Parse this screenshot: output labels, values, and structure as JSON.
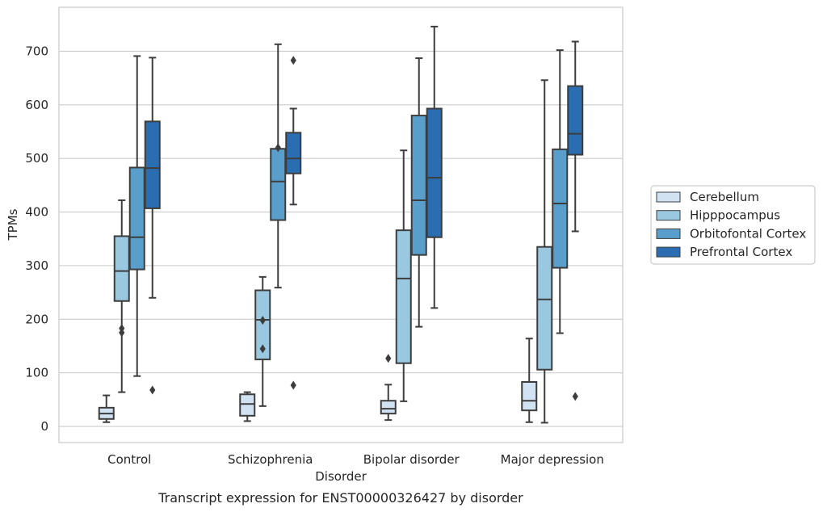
{
  "chart_data": {
    "type": "box",
    "caption": "Transcript expression for ENST00000326427 by disorder",
    "xlabel": "Disorder",
    "ylabel": "TPMs",
    "ylim": [
      -30,
      782
    ],
    "yticks": [
      0,
      100,
      200,
      300,
      400,
      500,
      600,
      700
    ],
    "grid": true,
    "legend_position": "right",
    "categories": [
      "Control",
      "Schizophrenia",
      "Bipolar disorder",
      "Major depression"
    ],
    "series": [
      {
        "name": "Cerebellum",
        "color": "#d1e2f2",
        "boxes": [
          {
            "whislo": 8,
            "q1": 14,
            "med": 24,
            "q3": 35,
            "whishi": 58,
            "fliers": []
          },
          {
            "whislo": 10,
            "q1": 20,
            "med": 42,
            "q3": 60,
            "whishi": 64,
            "fliers": []
          },
          {
            "whislo": 12,
            "q1": 24,
            "med": 33,
            "q3": 48,
            "whishi": 78,
            "fliers": [
              127
            ]
          },
          {
            "whislo": 8,
            "q1": 30,
            "med": 48,
            "q3": 83,
            "whishi": 164,
            "fliers": []
          }
        ]
      },
      {
        "name": "Hipppocampus",
        "color": "#9ac8e0",
        "boxes": [
          {
            "whislo": 64,
            "q1": 234,
            "med": 290,
            "q3": 355,
            "whishi": 422,
            "fliers": [
              175,
              183
            ]
          },
          {
            "whislo": 38,
            "q1": 125,
            "med": 199,
            "q3": 254,
            "whishi": 279,
            "fliers": [
              145,
              198
            ]
          },
          {
            "whislo": 47,
            "q1": 118,
            "med": 276,
            "q3": 366,
            "whishi": 515,
            "fliers": []
          },
          {
            "whislo": 7,
            "q1": 106,
            "med": 237,
            "q3": 335,
            "whishi": 646,
            "fliers": []
          }
        ]
      },
      {
        "name": "Orbitofontal Cortex",
        "color": "#5a9fcb",
        "boxes": [
          {
            "whislo": 94,
            "q1": 293,
            "med": 353,
            "q3": 483,
            "whishi": 691,
            "fliers": []
          },
          {
            "whislo": 259,
            "q1": 385,
            "med": 457,
            "q3": 518,
            "whishi": 713,
            "fliers": [
              520
            ]
          },
          {
            "whislo": 186,
            "q1": 320,
            "med": 422,
            "q3": 580,
            "whishi": 687,
            "fliers": []
          },
          {
            "whislo": 174,
            "q1": 296,
            "med": 416,
            "q3": 517,
            "whishi": 702,
            "fliers": []
          }
        ]
      },
      {
        "name": "Prefrontal Cortex",
        "color": "#2a6eb1",
        "boxes": [
          {
            "whislo": 240,
            "q1": 407,
            "med": 482,
            "q3": 569,
            "whishi": 688,
            "fliers": [
              68
            ]
          },
          {
            "whislo": 414,
            "q1": 472,
            "med": 500,
            "q3": 548,
            "whishi": 593,
            "fliers": [
              77,
              683
            ]
          },
          {
            "whislo": 221,
            "q1": 353,
            "med": 464,
            "q3": 593,
            "whishi": 746,
            "fliers": []
          },
          {
            "whislo": 364,
            "q1": 507,
            "med": 546,
            "q3": 635,
            "whishi": 718,
            "fliers": [
              56
            ]
          }
        ]
      }
    ]
  }
}
